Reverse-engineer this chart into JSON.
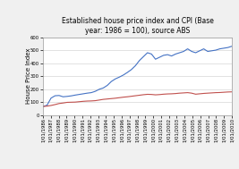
{
  "title": "Established house price index and CPI (Base\nyear: 1986 = 100), source ABS",
  "ylabel": "House Price Index",
  "background_color": "#f0f0f0",
  "plot_bg_color": "#ffffff",
  "ylim": [
    0,
    600
  ],
  "yticks": [
    0,
    100,
    200,
    300,
    400,
    500,
    600
  ],
  "x_labels": [
    "1/01/1986",
    "1/01/1987",
    "1/01/1988",
    "1/01/1989",
    "1/01/1990",
    "1/01/1991",
    "1/01/1992",
    "1/01/1993",
    "1/01/1994",
    "1/01/1995",
    "1/01/1996",
    "1/01/1997",
    "1/01/1998",
    "1/01/1999",
    "1/01/2000",
    "1/01/2001",
    "1/01/2002",
    "1/01/2003",
    "1/01/2004",
    "1/01/2005",
    "1/01/2006",
    "1/01/2007",
    "1/01/2008",
    "1/01/2009",
    "1/01/2010"
  ],
  "house_price": [
    65,
    75,
    130,
    148,
    150,
    140,
    143,
    147,
    153,
    158,
    163,
    168,
    172,
    182,
    198,
    208,
    228,
    258,
    278,
    292,
    308,
    328,
    350,
    380,
    420,
    450,
    480,
    470,
    430,
    445,
    460,
    465,
    455,
    470,
    480,
    490,
    510,
    490,
    480,
    495,
    510,
    490,
    495,
    500,
    510,
    515,
    520,
    530
  ],
  "cpi": [
    65,
    68,
    73,
    80,
    88,
    92,
    97,
    98,
    99,
    102,
    105,
    107,
    108,
    110,
    115,
    120,
    123,
    126,
    129,
    133,
    137,
    140,
    144,
    148,
    152,
    156,
    159,
    158,
    155,
    157,
    160,
    162,
    163,
    165,
    168,
    170,
    172,
    168,
    160,
    163,
    166,
    168,
    170,
    172,
    173,
    175,
    177,
    178
  ],
  "house_color": "#4472c4",
  "cpi_color": "#c0504d",
  "title_fontsize": 5.5,
  "axis_label_fontsize": 5,
  "tick_fontsize": 3.8,
  "ylabel_fontsize": 5,
  "figsize": [
    2.67,
    1.89
  ],
  "dpi": 100
}
